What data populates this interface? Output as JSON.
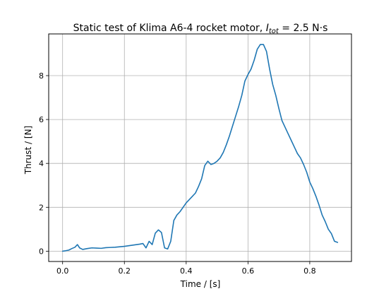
{
  "chart_data": {
    "type": "line",
    "title_prefix": "Static test of Klima A6-4 rocket motor, ",
    "title_symbol": "I",
    "title_subscript": "tot",
    "title_suffix": " = 2.5 N·s",
    "xlabel": "Time / [s]",
    "ylabel": "Thrust / [N]",
    "xlim": [
      -0.045,
      0.935
    ],
    "ylim": [
      -0.47,
      9.9
    ],
    "xticks": [
      0.0,
      0.2,
      0.4,
      0.6,
      0.8
    ],
    "xtick_labels": [
      "0.0",
      "0.2",
      "0.4",
      "0.6",
      "0.8"
    ],
    "yticks": [
      0,
      2,
      4,
      6,
      8
    ],
    "ytick_labels": [
      "0",
      "2",
      "4",
      "6",
      "8"
    ],
    "grid": true,
    "line_color": "#1f77b4",
    "series": [
      {
        "x": [
          0.0,
          0.01,
          0.02,
          0.03,
          0.04,
          0.048,
          0.055,
          0.065,
          0.08,
          0.095,
          0.11,
          0.125,
          0.14,
          0.155,
          0.17,
          0.185,
          0.2,
          0.21,
          0.22,
          0.23,
          0.24,
          0.25,
          0.26,
          0.27,
          0.28,
          0.29,
          0.3,
          0.31,
          0.32,
          0.33,
          0.34,
          0.35,
          0.36,
          0.37,
          0.38,
          0.39,
          0.4,
          0.41,
          0.42,
          0.43,
          0.44,
          0.45,
          0.46,
          0.47,
          0.48,
          0.49,
          0.5,
          0.51,
          0.52,
          0.53,
          0.54,
          0.55,
          0.56,
          0.57,
          0.58,
          0.59,
          0.6,
          0.61,
          0.62,
          0.63,
          0.64,
          0.65,
          0.66,
          0.67,
          0.68,
          0.69,
          0.7,
          0.71,
          0.72,
          0.73,
          0.74,
          0.75,
          0.76,
          0.77,
          0.78,
          0.79,
          0.8,
          0.81,
          0.82,
          0.83,
          0.84,
          0.85,
          0.86,
          0.87,
          0.88,
          0.89
        ],
        "y": [
          0.0,
          0.02,
          0.05,
          0.12,
          0.18,
          0.3,
          0.15,
          0.08,
          0.12,
          0.15,
          0.14,
          0.13,
          0.16,
          0.17,
          0.18,
          0.2,
          0.22,
          0.24,
          0.26,
          0.28,
          0.3,
          0.32,
          0.35,
          0.15,
          0.45,
          0.3,
          0.82,
          0.97,
          0.85,
          0.15,
          0.1,
          0.45,
          1.4,
          1.65,
          1.8,
          2.0,
          2.2,
          2.35,
          2.5,
          2.65,
          2.95,
          3.3,
          3.9,
          4.1,
          3.95,
          4.0,
          4.1,
          4.25,
          4.5,
          4.85,
          5.25,
          5.7,
          6.15,
          6.6,
          7.1,
          7.75,
          8.05,
          8.3,
          8.7,
          9.2,
          9.42,
          9.42,
          9.1,
          8.3,
          7.6,
          7.1,
          6.5,
          5.95,
          5.65,
          5.35,
          5.05,
          4.75,
          4.45,
          4.25,
          3.95,
          3.6,
          3.15,
          2.85,
          2.5,
          2.1,
          1.65,
          1.35,
          1.0,
          0.8,
          0.45,
          0.4
        ]
      }
    ]
  }
}
